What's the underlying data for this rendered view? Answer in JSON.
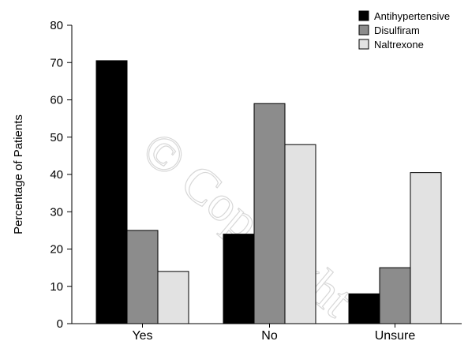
{
  "watermark": "© Copyright",
  "chart_data": {
    "type": "bar",
    "title": "",
    "xlabel": "",
    "ylabel": "Percentage of Patients",
    "ylim": [
      0,
      80
    ],
    "yticks": [
      0,
      10,
      20,
      30,
      40,
      50,
      60,
      70,
      80
    ],
    "categories": [
      "Yes",
      "No",
      "Unsure"
    ],
    "series": [
      {
        "name": "Antihypertensive",
        "color": "#000000",
        "values": [
          70.5,
          24,
          8
        ]
      },
      {
        "name": "Disulfiram",
        "color": "#8c8c8c",
        "values": [
          25,
          59,
          15
        ]
      },
      {
        "name": "Naltrexone",
        "color": "#e2e2e2",
        "values": [
          14,
          48,
          40.5
        ]
      }
    ],
    "legend": "top-right",
    "grid": false
  }
}
